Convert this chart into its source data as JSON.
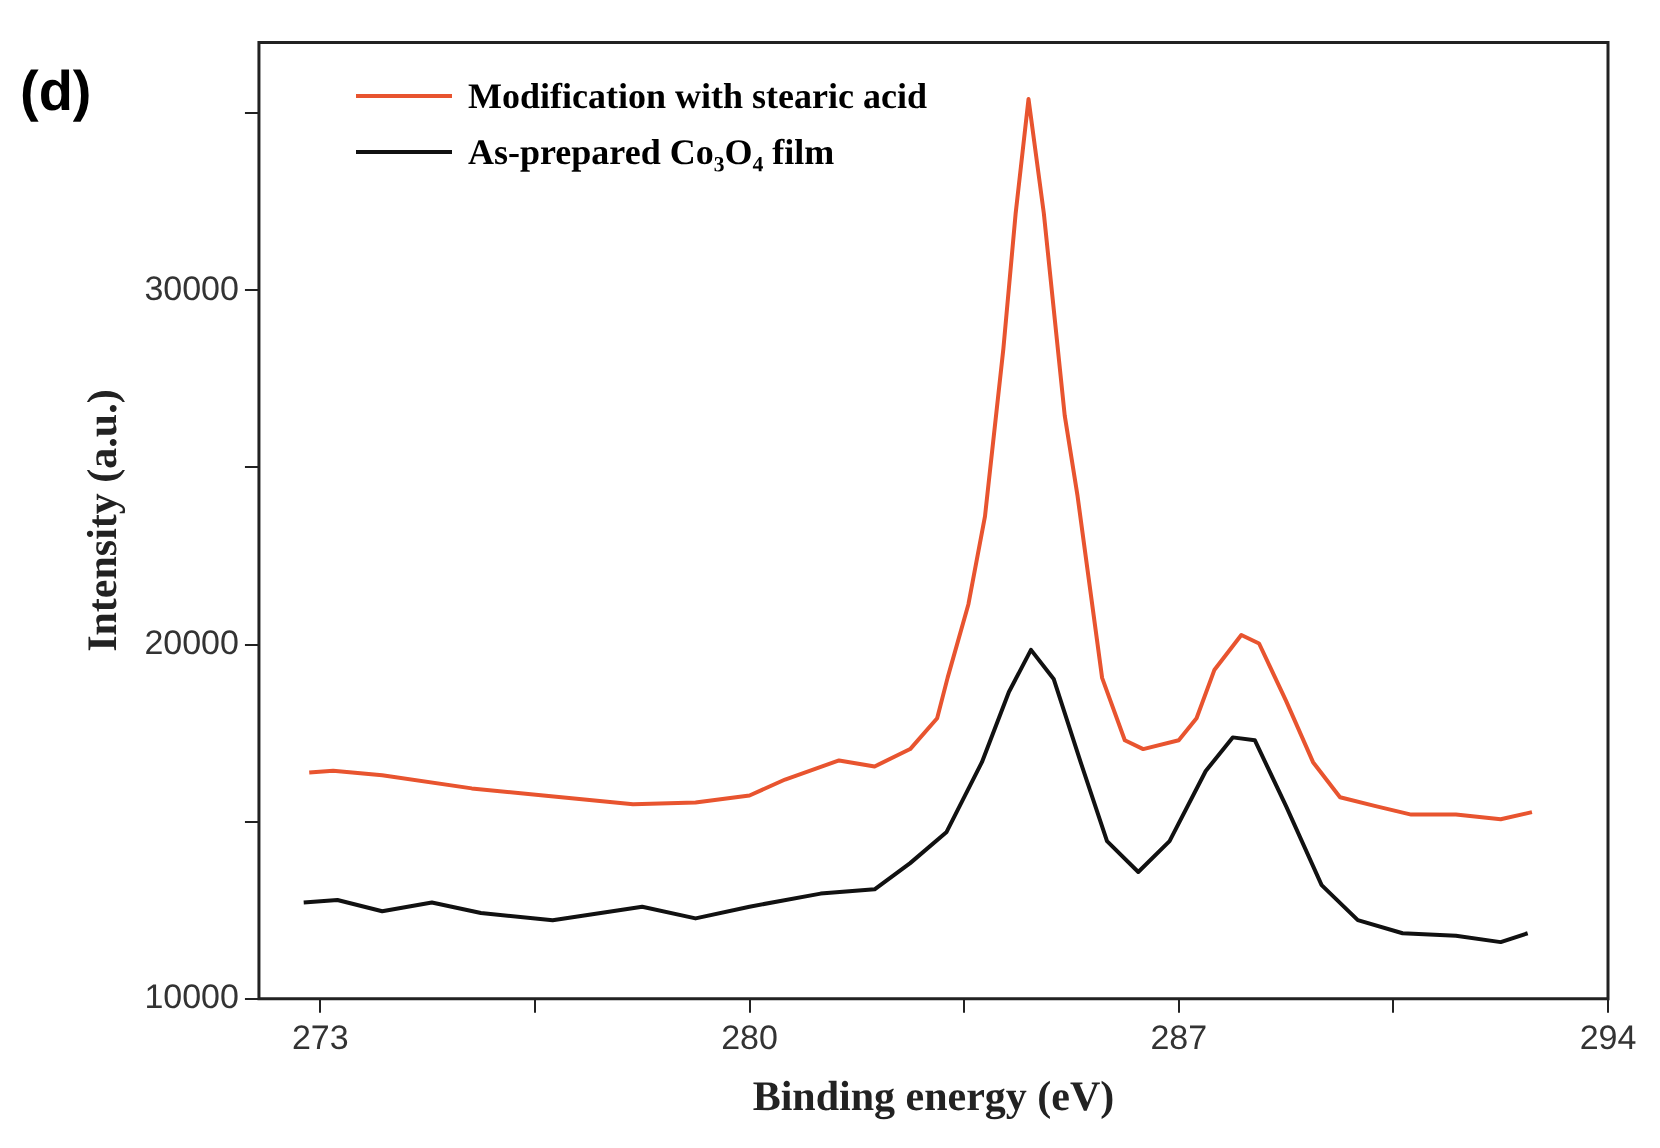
{
  "chart_data": {
    "type": "line",
    "title": "(d)",
    "xlabel": "Binding energy (eV)",
    "ylabel": "Intensity (a.u.)",
    "xlim": [
      272,
      294
    ],
    "xticks": [
      273,
      {
        "value": 276.5,
        "label": null
      },
      280,
      {
        "value": 283.5,
        "label": null
      },
      287,
      {
        "value": 290.5,
        "label": null
      },
      294
    ],
    "ylim": [
      10000,
      37000
    ],
    "yticks": [
      10000,
      {
        "value": 15000,
        "label": null
      },
      20000,
      {
        "value": 25000,
        "label": null
      },
      30000,
      {
        "value": 35000,
        "label": null
      }
    ],
    "grid": false,
    "legend": "top left",
    "marker": "none",
    "line_style": "solid",
    "series": [
      {
        "name": "Modification with stearic acid",
        "color": "#e8542f",
        "x": [
          272.82,
          273.21,
          274.01,
          275.47,
          276.64,
          278.1,
          279.12,
          280.0,
          280.58,
          281.46,
          282.04,
          282.62,
          283.06,
          283.23,
          283.57,
          283.84,
          284.14,
          284.34,
          284.55,
          284.8,
          285.14,
          285.35,
          285.75,
          286.12,
          286.42,
          287.0,
          287.29,
          287.58,
          288.02,
          288.31,
          288.75,
          289.19,
          289.63,
          290.21,
          290.79,
          291.52,
          292.25,
          292.76
        ],
        "values": [
          16390,
          16440,
          16310,
          15940,
          15740,
          15490,
          15540,
          15740,
          16190,
          16730,
          16560,
          17050,
          17920,
          19060,
          21140,
          23620,
          28350,
          32170,
          35400,
          32170,
          26470,
          24190,
          19060,
          17300,
          17050,
          17300,
          17920,
          19280,
          20270,
          20030,
          18410,
          16680,
          15690,
          15440,
          15200,
          15200,
          15070,
          15270
        ]
      },
      {
        "name": "As-prepared Co₃O₄ film",
        "color": "#111111",
        "x": [
          272.73,
          273.28,
          274.01,
          274.82,
          275.62,
          276.79,
          278.25,
          279.12,
          280.0,
          281.16,
          282.04,
          282.62,
          283.21,
          283.79,
          284.23,
          284.59,
          284.96,
          285.4,
          285.83,
          286.34,
          286.85,
          287.44,
          287.88,
          288.24,
          288.75,
          289.33,
          289.92,
          290.65,
          291.52,
          292.25,
          292.69
        ],
        "values": [
          12720,
          12790,
          12470,
          12720,
          12420,
          12220,
          12600,
          12270,
          12600,
          12970,
          13090,
          13830,
          14700,
          16680,
          18660,
          19850,
          19030,
          16680,
          14450,
          13580,
          14450,
          16430,
          17380,
          17300,
          15440,
          13210,
          12220,
          11850,
          11780,
          11600,
          11850
        ]
      }
    ]
  }
}
